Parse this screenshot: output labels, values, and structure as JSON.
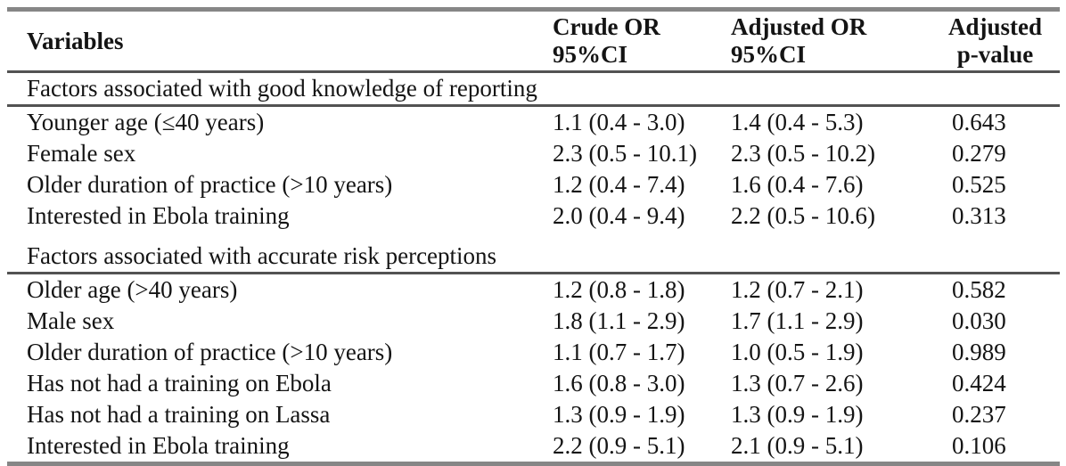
{
  "table": {
    "header": {
      "variables": "Variables",
      "crude_or_line1": "Crude OR",
      "crude_or_line2": "95%CI",
      "adjusted_or_line1": "Adjusted OR",
      "adjusted_or_line2": "95%CI",
      "p_value_line1": "Adjusted",
      "p_value_line2": "p-value"
    },
    "sections": [
      {
        "title": "Factors associated with good knowledge of reporting",
        "rows": [
          {
            "variable": "Younger age (≤40 years)",
            "crude_or": "1.1 (0.4 - 3.0)",
            "adjusted_or": "1.4 (0.4 - 5.3)",
            "p_value": "0.643"
          },
          {
            "variable": "Female sex",
            "crude_or": "2.3 (0.5 - 10.1)",
            "adjusted_or": "2.3 (0.5 - 10.2)",
            "p_value": "0.279"
          },
          {
            "variable": "Older duration of practice (>10 years)",
            "crude_or": "1.2 (0.4 - 7.4)",
            "adjusted_or": "1.6 (0.4 - 7.6)",
            "p_value": "0.525"
          },
          {
            "variable": "Interested in Ebola training",
            "crude_or": "2.0 (0.4 - 9.4)",
            "adjusted_or": "2.2 (0.5 - 10.6)",
            "p_value": "0.313"
          }
        ]
      },
      {
        "title": "Factors associated with accurate risk perceptions",
        "rows": [
          {
            "variable": "Older age (>40 years)",
            "crude_or": "1.2 (0.8 - 1.8)",
            "adjusted_or": "1.2 (0.7 - 2.1)",
            "p_value": "0.582"
          },
          {
            "variable": "Male sex",
            "crude_or": "1.8 (1.1 - 2.9)",
            "adjusted_or": "1.7 (1.1 - 2.9)",
            "p_value": "0.030"
          },
          {
            "variable": "Older duration of practice (>10 years)",
            "crude_or": "1.1 (0.7 - 1.7)",
            "adjusted_or": "1.0 (0.5 - 1.9)",
            "p_value": "0.989"
          },
          {
            "variable": "Has not had a training on Ebola",
            "crude_or": "1.6 (0.8 - 3.0)",
            "adjusted_or": "1.3 (0.7 - 2.6)",
            "p_value": "0.424"
          },
          {
            "variable": "Has not had a training on Lassa",
            "crude_or": "1.3 (0.9 - 1.9)",
            "adjusted_or": "1.3 (0.9 - 1.9)",
            "p_value": "0.237"
          },
          {
            "variable": "Interested in Ebola training",
            "crude_or": "2.2 (0.9 - 5.1)",
            "adjusted_or": "2.1 (0.9 - 5.1)",
            "p_value": "0.106"
          }
        ]
      }
    ],
    "colors": {
      "thick_rule": "#868686",
      "thin_rule": "#525252",
      "text": "#141414"
    }
  }
}
